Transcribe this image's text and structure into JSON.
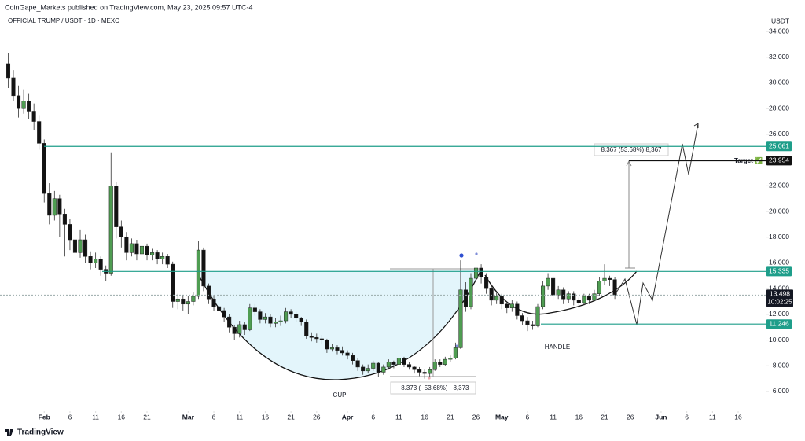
{
  "chart_data": {
    "type": "candlestick",
    "subtitle": "CoinGape_Markets published on TradingView.com, May 23, 2025 09:57 UTC-4",
    "title": "OFFICIAL TRUMP / USDT · 1D · MEXC",
    "y_axis_label": "USDT",
    "footer": "TradingView",
    "annotations": {
      "cup": "CUP",
      "handle": "HANDLE",
      "up_measure": "8.367 (53.68%) 8,367",
      "down_measure": "−8.373 (−53.68%) −8,373",
      "target": "Target ✅",
      "countdown": "10:02:25"
    },
    "up_color": "#4f9d52",
    "down_color": "#131313",
    "level_color": "#1e9e8a",
    "xlim": [
      23.4,
      172.5
    ],
    "ylim": [
      4.96,
      36.45
    ],
    "yticks": [
      {
        "value": 6,
        "label": "6.000"
      },
      {
        "value": 8,
        "label": "8.000"
      },
      {
        "value": 10,
        "label": "10.000"
      },
      {
        "value": 12,
        "label": "12.000"
      },
      {
        "value": 14,
        "label": "14.000"
      },
      {
        "value": 16,
        "label": "16.000"
      },
      {
        "value": 18,
        "label": "18.000"
      },
      {
        "value": 20,
        "label": "20.000"
      },
      {
        "value": 22,
        "label": "22.000"
      },
      {
        "value": 24,
        "label": "24.000"
      },
      {
        "value": 26,
        "label": "26.000"
      },
      {
        "value": 28,
        "label": "28.000"
      },
      {
        "value": 30,
        "label": "30.000"
      },
      {
        "value": 32,
        "label": "32.000"
      },
      {
        "value": 34,
        "label": "34.000"
      }
    ],
    "xticks": [
      {
        "value": 32,
        "label": "Feb"
      },
      {
        "value": 37,
        "label": "6"
      },
      {
        "value": 42,
        "label": "11"
      },
      {
        "value": 47,
        "label": "16"
      },
      {
        "value": 52,
        "label": "21"
      },
      {
        "value": 60,
        "label": "Mar"
      },
      {
        "value": 65,
        "label": "6"
      },
      {
        "value": 70,
        "label": "11"
      },
      {
        "value": 75,
        "label": "16"
      },
      {
        "value": 80,
        "label": "21"
      },
      {
        "value": 85,
        "label": "26"
      },
      {
        "value": 91,
        "label": "Apr"
      },
      {
        "value": 96,
        "label": "6"
      },
      {
        "value": 101,
        "label": "11"
      },
      {
        "value": 106,
        "label": "16"
      },
      {
        "value": 111,
        "label": "21"
      },
      {
        "value": 116,
        "label": "26"
      },
      {
        "value": 121,
        "label": "May"
      },
      {
        "value": 126,
        "label": "6"
      },
      {
        "value": 131,
        "label": "11"
      },
      {
        "value": 136,
        "label": "16"
      },
      {
        "value": 141,
        "label": "21"
      },
      {
        "value": 146,
        "label": "26"
      },
      {
        "value": 152,
        "label": "Jun"
      },
      {
        "value": 157,
        "label": "6"
      },
      {
        "value": 162,
        "label": "11"
      },
      {
        "value": 167,
        "label": "16"
      }
    ],
    "levels": [
      {
        "value": 25.061,
        "style": "level"
      },
      {
        "value": 23.954,
        "style": "target"
      },
      {
        "value": 15.335,
        "style": "level"
      },
      {
        "value": 11.246,
        "style": "level"
      }
    ],
    "last_price": 13.498,
    "x": [
      25,
      26,
      27,
      28,
      29,
      30,
      31,
      32,
      33,
      34,
      35,
      36,
      37,
      38,
      39,
      40,
      41,
      42,
      43,
      44,
      45,
      46,
      47,
      48,
      49,
      50,
      51,
      52,
      53,
      54,
      55,
      56,
      57,
      58,
      59,
      60,
      61,
      62,
      63,
      64,
      65,
      66,
      67,
      68,
      69,
      70,
      71,
      72,
      73,
      74,
      75,
      76,
      77,
      78,
      79,
      80,
      81,
      82,
      83,
      84,
      85,
      86,
      87,
      88,
      89,
      90,
      91,
      92,
      93,
      94,
      95,
      96,
      97,
      98,
      99,
      100,
      101,
      102,
      103,
      104,
      105,
      106,
      107,
      108,
      109,
      110,
      111,
      112,
      113,
      114,
      115,
      116,
      117,
      118,
      119,
      120,
      121,
      122,
      123,
      124,
      125,
      126,
      127,
      128,
      129,
      130,
      131,
      132,
      133,
      134,
      135,
      136,
      137,
      138,
      139,
      140,
      141,
      142,
      143
    ],
    "candles": [
      [
        31.5,
        32.3,
        29.6,
        30.4
      ],
      [
        30.4,
        31.0,
        28.6,
        29.0
      ],
      [
        29.0,
        29.8,
        27.3,
        28.0
      ],
      [
        28.0,
        29.5,
        27.6,
        28.6
      ],
      [
        28.6,
        29.2,
        27.2,
        27.8
      ],
      [
        27.8,
        28.4,
        26.3,
        27.0
      ],
      [
        27.0,
        27.5,
        24.8,
        25.3
      ],
      [
        25.3,
        25.6,
        20.7,
        21.4
      ],
      [
        21.4,
        22.2,
        19.0,
        19.7
      ],
      [
        19.7,
        21.6,
        19.3,
        21.0
      ],
      [
        21.0,
        21.3,
        18.0,
        19.8
      ],
      [
        19.8,
        20.2,
        16.5,
        19.0
      ],
      [
        19.0,
        19.4,
        17.0,
        17.8
      ],
      [
        17.8,
        18.0,
        16.2,
        16.8
      ],
      [
        16.8,
        18.6,
        16.4,
        17.8
      ],
      [
        17.8,
        18.2,
        16.0,
        16.5
      ],
      [
        16.5,
        16.9,
        15.5,
        16.0
      ],
      [
        16.0,
        16.8,
        15.6,
        16.3
      ],
      [
        16.3,
        16.5,
        15.0,
        15.5
      ],
      [
        15.5,
        15.8,
        14.6,
        15.2
      ],
      [
        15.2,
        24.6,
        15.0,
        22.0
      ],
      [
        22.0,
        22.3,
        17.9,
        18.8
      ],
      [
        18.8,
        19.3,
        17.2,
        18.0
      ],
      [
        18.0,
        18.4,
        16.2,
        16.8
      ],
      [
        16.8,
        17.9,
        16.5,
        17.5
      ],
      [
        17.5,
        17.8,
        16.2,
        16.7
      ],
      [
        16.7,
        17.6,
        16.4,
        17.3
      ],
      [
        17.3,
        17.5,
        16.2,
        16.6
      ],
      [
        16.6,
        17.1,
        16.2,
        16.8
      ],
      [
        16.8,
        17.0,
        15.9,
        16.3
      ],
      [
        16.3,
        16.8,
        15.9,
        16.5
      ],
      [
        16.5,
        16.7,
        15.6,
        15.9
      ],
      [
        15.9,
        16.1,
        12.5,
        13.0
      ],
      [
        13.0,
        13.6,
        12.4,
        13.2
      ],
      [
        13.2,
        13.5,
        12.3,
        12.8
      ],
      [
        12.8,
        13.4,
        12.0,
        13.0
      ],
      [
        13.0,
        13.7,
        12.7,
        13.4
      ],
      [
        13.4,
        17.7,
        13.2,
        17.0
      ],
      [
        17.0,
        17.2,
        13.8,
        14.2
      ],
      [
        14.2,
        14.4,
        12.8,
        13.2
      ],
      [
        13.2,
        13.5,
        12.3,
        12.6
      ],
      [
        12.6,
        12.9,
        11.8,
        12.3
      ],
      [
        12.3,
        12.5,
        11.4,
        11.8
      ],
      [
        11.8,
        12.0,
        10.6,
        11.0
      ],
      [
        11.0,
        11.2,
        10.0,
        10.5
      ],
      [
        10.5,
        11.5,
        10.2,
        11.2
      ],
      [
        11.2,
        11.4,
        10.4,
        10.8
      ],
      [
        10.8,
        12.8,
        10.7,
        12.5
      ],
      [
        12.5,
        12.8,
        11.9,
        12.2
      ],
      [
        12.2,
        12.4,
        11.3,
        11.6
      ],
      [
        11.6,
        12.1,
        11.3,
        11.8
      ],
      [
        11.8,
        12.0,
        11.0,
        11.3
      ],
      [
        11.3,
        11.7,
        11.0,
        11.4
      ],
      [
        11.4,
        11.9,
        11.1,
        11.5
      ],
      [
        11.5,
        12.5,
        11.3,
        12.2
      ],
      [
        12.2,
        12.4,
        11.7,
        12.0
      ],
      [
        12.0,
        12.2,
        11.4,
        11.7
      ],
      [
        11.7,
        11.8,
        11.1,
        11.4
      ],
      [
        11.4,
        11.6,
        10.1,
        10.3
      ],
      [
        10.3,
        10.6,
        9.9,
        10.2
      ],
      [
        10.2,
        10.5,
        9.8,
        10.1
      ],
      [
        10.1,
        10.4,
        9.7,
        10.0
      ],
      [
        10.0,
        10.1,
        9.0,
        9.3
      ],
      [
        9.3,
        9.7,
        9.1,
        9.4
      ],
      [
        9.4,
        9.6,
        8.9,
        9.2
      ],
      [
        9.2,
        9.5,
        8.8,
        9.0
      ],
      [
        9.0,
        9.2,
        8.5,
        8.8
      ],
      [
        8.8,
        9.0,
        8.1,
        8.4
      ],
      [
        8.4,
        8.6,
        7.6,
        7.9
      ],
      [
        7.9,
        8.1,
        7.3,
        7.6
      ],
      [
        7.6,
        8.1,
        7.4,
        7.8
      ],
      [
        7.8,
        8.4,
        7.6,
        8.2
      ],
      [
        8.2,
        8.3,
        7.1,
        7.5
      ],
      [
        7.5,
        8.1,
        7.3,
        7.9
      ],
      [
        7.9,
        8.5,
        7.7,
        8.3
      ],
      [
        8.3,
        8.4,
        7.8,
        8.1
      ],
      [
        8.1,
        8.8,
        7.9,
        8.6
      ],
      [
        8.6,
        8.7,
        7.9,
        8.1
      ],
      [
        8.1,
        8.3,
        7.7,
        7.9
      ],
      [
        7.9,
        8.0,
        7.4,
        7.7
      ],
      [
        7.7,
        7.9,
        7.2,
        7.5
      ],
      [
        7.5,
        7.7,
        7.0,
        7.4
      ],
      [
        7.4,
        7.9,
        7.1,
        7.7
      ],
      [
        7.7,
        8.5,
        7.6,
        8.3
      ],
      [
        8.3,
        8.5,
        7.9,
        8.1
      ],
      [
        8.1,
        8.7,
        8.0,
        8.5
      ],
      [
        8.5,
        8.8,
        8.3,
        8.6
      ],
      [
        8.6,
        9.8,
        8.5,
        9.4
      ],
      [
        9.4,
        16.2,
        9.3,
        13.9
      ],
      [
        13.9,
        14.5,
        12.2,
        12.6
      ],
      [
        12.6,
        15.2,
        12.4,
        14.8
      ],
      [
        14.8,
        16.7,
        14.5,
        15.6
      ],
      [
        15.6,
        15.9,
        14.4,
        14.9
      ],
      [
        14.9,
        15.2,
        13.6,
        14.0
      ],
      [
        14.0,
        14.3,
        12.7,
        13.1
      ],
      [
        13.1,
        13.7,
        12.8,
        13.4
      ],
      [
        13.4,
        13.6,
        12.4,
        12.8
      ],
      [
        12.8,
        13.0,
        12.1,
        12.5
      ],
      [
        12.5,
        13.1,
        12.2,
        12.8
      ],
      [
        12.8,
        13.0,
        11.6,
        11.9
      ],
      [
        11.9,
        12.1,
        11.2,
        11.5
      ],
      [
        11.5,
        11.8,
        10.7,
        11.2
      ],
      [
        11.2,
        11.5,
        10.8,
        11.1
      ],
      [
        11.1,
        12.8,
        11.0,
        12.6
      ],
      [
        12.6,
        14.6,
        12.4,
        14.2
      ],
      [
        14.2,
        15.2,
        13.9,
        14.8
      ],
      [
        14.8,
        15.0,
        13.1,
        13.5
      ],
      [
        13.5,
        14.2,
        13.2,
        13.9
      ],
      [
        13.9,
        14.1,
        12.8,
        13.2
      ],
      [
        13.2,
        13.8,
        12.9,
        13.6
      ],
      [
        13.6,
        13.8,
        12.7,
        13.1
      ],
      [
        13.1,
        13.3,
        12.5,
        12.9
      ],
      [
        12.9,
        13.6,
        12.7,
        13.4
      ],
      [
        13.4,
        13.6,
        12.8,
        13.1
      ],
      [
        13.1,
        13.9,
        13.0,
        13.6
      ],
      [
        13.6,
        14.9,
        13.4,
        14.6
      ],
      [
        14.6,
        15.9,
        14.3,
        14.8
      ],
      [
        14.8,
        15.0,
        14.2,
        14.7
      ],
      [
        14.7,
        14.9,
        13.2,
        13.5
      ]
    ]
  }
}
